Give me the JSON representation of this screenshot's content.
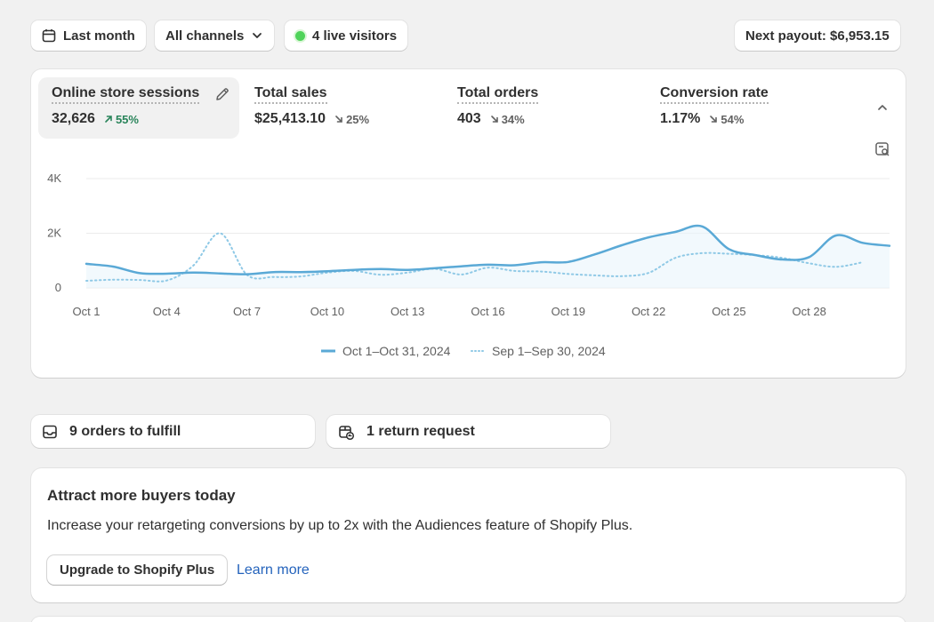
{
  "filters": {
    "date_range": "Last month",
    "channels": "All channels",
    "live_visitors": "4 live visitors",
    "payout": "Next payout: $6,953.15"
  },
  "metrics": [
    {
      "label": "Online store sessions",
      "value": "32,626",
      "delta": "55%",
      "direction": "up"
    },
    {
      "label": "Total sales",
      "value": "$25,413.10",
      "delta": "25%",
      "direction": "down"
    },
    {
      "label": "Total orders",
      "value": "403",
      "delta": "34%",
      "direction": "down"
    },
    {
      "label": "Conversion rate",
      "value": "1.17%",
      "delta": "54%",
      "direction": "down"
    }
  ],
  "chart_data": {
    "type": "line",
    "ylim": [
      0,
      4000
    ],
    "y_ticks": [
      "0",
      "2K",
      "4K"
    ],
    "x_tick_labels": [
      "Oct 1",
      "Oct 4",
      "Oct 7",
      "Oct 10",
      "Oct 13",
      "Oct 16",
      "Oct 19",
      "Oct 22",
      "Oct 25",
      "Oct 28"
    ],
    "grid": true,
    "legend_position": "bottom",
    "series": [
      {
        "name": "Oct 1–Oct 31, 2024",
        "style": "solid",
        "color": "#5aa9d6",
        "x": [
          1,
          2,
          3,
          4,
          5,
          6,
          7,
          8,
          9,
          10,
          11,
          12,
          13,
          14,
          15,
          16,
          17,
          18,
          19,
          20,
          21,
          22,
          23,
          24,
          25,
          26,
          27,
          28,
          29,
          30,
          31
        ],
        "values": [
          880,
          780,
          540,
          520,
          560,
          530,
          500,
          580,
          580,
          610,
          660,
          690,
          660,
          720,
          790,
          850,
          830,
          940,
          950,
          1230,
          1560,
          1850,
          2050,
          2250,
          1420,
          1200,
          1040,
          1130,
          1920,
          1650,
          1540
        ]
      },
      {
        "name": "Sep 1–Sep 30, 2024",
        "style": "dotted",
        "color": "#8fc9e6",
        "x": [
          1,
          2,
          3,
          4,
          5,
          6,
          7,
          8,
          9,
          10,
          11,
          12,
          13,
          14,
          15,
          16,
          17,
          18,
          19,
          20,
          21,
          22,
          23,
          24,
          25,
          26,
          27,
          28,
          29,
          30
        ],
        "values": [
          260,
          300,
          290,
          270,
          820,
          2000,
          480,
          400,
          420,
          560,
          620,
          480,
          560,
          700,
          490,
          740,
          620,
          600,
          510,
          460,
          430,
          550,
          1100,
          1270,
          1250,
          1200,
          1100,
          900,
          770,
          940
        ]
      }
    ]
  },
  "tasks": {
    "orders": "9 orders to fulfill",
    "returns": "1 return request"
  },
  "promo": {
    "title": "Attract more buyers today",
    "body": "Increase your retargeting conversions by up to 2x with the Audiences feature of Shopify Plus.",
    "button": "Upgrade to Shopify Plus",
    "link": "Learn more"
  },
  "colors": {
    "accent_line": "#5aa9d6",
    "accent_line_prev": "#8fc9e6",
    "up": "#29845a",
    "link": "#2463bc"
  }
}
